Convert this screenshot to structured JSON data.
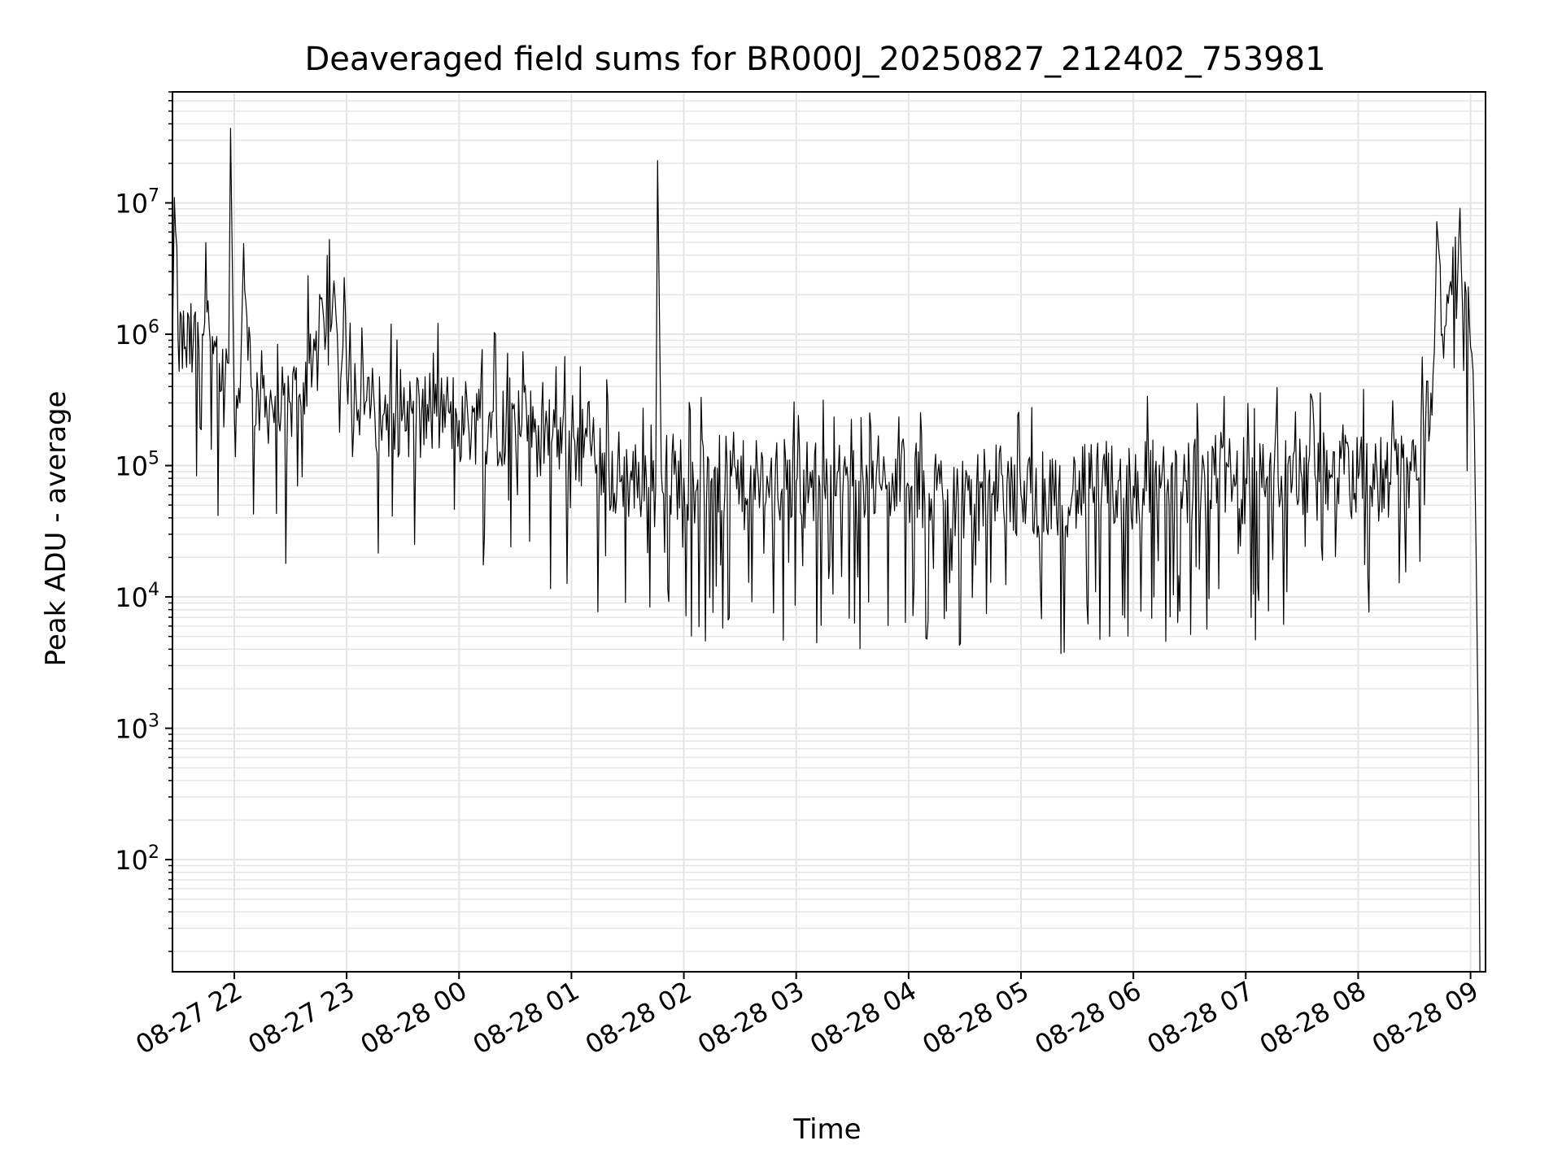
{
  "chart_data": {
    "type": "line",
    "title": "Deaveraged field sums for BR000J_20250827_212402_753981",
    "xlabel": "Time",
    "ylabel": "Peak ADU - average",
    "yscale": "log",
    "ylim": [
      14,
      70000000
    ],
    "xlim": [
      "2025-08-27 21:27",
      "2025-08-28 09:08"
    ],
    "grid": true,
    "line_color": "#000000",
    "grid_color": "#e5e5e5",
    "x_ticks": [
      {
        "t": "2025-08-27 22:00",
        "label": "08-27 22"
      },
      {
        "t": "2025-08-27 23:00",
        "label": "08-27 23"
      },
      {
        "t": "2025-08-28 00:00",
        "label": "08-28 00"
      },
      {
        "t": "2025-08-28 01:00",
        "label": "08-28 01"
      },
      {
        "t": "2025-08-28 02:00",
        "label": "08-28 02"
      },
      {
        "t": "2025-08-28 03:00",
        "label": "08-28 03"
      },
      {
        "t": "2025-08-28 04:00",
        "label": "08-28 04"
      },
      {
        "t": "2025-08-28 05:00",
        "label": "08-28 05"
      },
      {
        "t": "2025-08-28 06:00",
        "label": "08-28 06"
      },
      {
        "t": "2025-08-28 07:00",
        "label": "08-28 07"
      },
      {
        "t": "2025-08-28 08:00",
        "label": "08-28 08"
      },
      {
        "t": "2025-08-28 09:00",
        "label": "08-28 09"
      }
    ],
    "y_ticks": [
      {
        "value": 100,
        "base": "10",
        "exp": "2"
      },
      {
        "value": 1000,
        "base": "10",
        "exp": "3"
      },
      {
        "value": 10000,
        "base": "10",
        "exp": "4"
      },
      {
        "value": 100000,
        "base": "10",
        "exp": "5"
      },
      {
        "value": 1000000,
        "base": "10",
        "exp": "6"
      },
      {
        "value": 10000000,
        "base": "10",
        "exp": "7"
      }
    ],
    "series": [
      {
        "x": [
          "2025-08-27 21:27",
          "2025-08-27 21:28",
          "2025-08-27 21:30",
          "2025-08-27 21:34",
          "2025-08-27 21:38",
          "2025-08-27 21:43",
          "2025-08-27 21:46",
          "2025-08-27 21:50",
          "2025-08-27 21:52",
          "2025-08-27 21:55",
          "2025-08-27 21:57",
          "2025-08-27 21:58",
          "2025-08-27 22:00",
          "2025-08-27 22:03",
          "2025-08-27 22:05",
          "2025-08-27 22:09",
          "2025-08-27 22:14",
          "2025-08-27 22:20",
          "2025-08-27 22:25",
          "2025-08-27 22:30",
          "2025-08-27 22:35",
          "2025-08-27 22:40",
          "2025-08-27 22:45",
          "2025-08-27 22:49",
          "2025-08-27 22:52",
          "2025-08-27 22:55",
          "2025-08-27 22:58",
          "2025-08-27 23:00",
          "2025-08-27 23:05",
          "2025-08-27 23:10",
          "2025-08-27 23:15",
          "2025-08-27 23:20",
          "2025-08-27 23:25",
          "2025-08-27 23:30",
          "2025-08-27 23:35",
          "2025-08-27 23:40",
          "2025-08-27 23:45",
          "2025-08-27 23:50",
          "2025-08-27 23:55",
          "2025-08-28 00:00",
          "2025-08-28 00:10",
          "2025-08-28 00:20",
          "2025-08-28 00:30",
          "2025-08-28 00:40",
          "2025-08-28 00:50",
          "2025-08-28 01:00",
          "2025-08-28 01:10",
          "2025-08-28 01:20",
          "2025-08-28 01:30",
          "2025-08-28 01:40",
          "2025-08-28 01:45",
          "2025-08-28 01:46",
          "2025-08-28 01:48",
          "2025-08-28 02:00",
          "2025-08-28 02:15",
          "2025-08-28 02:30",
          "2025-08-28 02:45",
          "2025-08-28 03:00",
          "2025-08-28 03:15",
          "2025-08-28 03:30",
          "2025-08-28 03:45",
          "2025-08-28 04:00",
          "2025-08-28 04:15",
          "2025-08-28 04:30",
          "2025-08-28 04:45",
          "2025-08-28 05:00",
          "2025-08-28 05:15",
          "2025-08-28 05:30",
          "2025-08-28 05:45",
          "2025-08-28 06:00",
          "2025-08-28 06:15",
          "2025-08-28 06:30",
          "2025-08-28 06:45",
          "2025-08-28 07:00",
          "2025-08-28 07:15",
          "2025-08-28 07:30",
          "2025-08-28 07:45",
          "2025-08-28 08:00",
          "2025-08-28 08:15",
          "2025-08-28 08:30",
          "2025-08-28 08:36",
          "2025-08-28 08:40",
          "2025-08-28 08:42",
          "2025-08-28 08:45",
          "2025-08-28 08:50",
          "2025-08-28 08:55",
          "2025-08-28 08:57",
          "2025-08-28 09:00",
          "2025-08-28 09:02",
          "2025-08-28 09:03",
          "2025-08-28 09:04",
          "2025-08-28 09:05"
        ],
        "values": [
          800000,
          11000000,
          900000,
          800000,
          800000,
          1000000,
          1800000,
          800000,
          600000,
          400000,
          600000,
          37000000,
          250000,
          300000,
          4900000,
          400000,
          350000,
          300000,
          250000,
          300000,
          350000,
          600000,
          800000,
          1000000,
          1200000,
          1000000,
          800000,
          500000,
          350000,
          300000,
          250000,
          250000,
          250000,
          250000,
          250000,
          250000,
          250000,
          250000,
          250000,
          220000,
          220000,
          220000,
          200000,
          180000,
          170000,
          160000,
          150000,
          90000,
          80000,
          80000,
          70000,
          21000000,
          90000,
          80000,
          80000,
          70000,
          70000,
          75000,
          70000,
          70000,
          70000,
          70000,
          65000,
          60000,
          60000,
          60000,
          60000,
          65000,
          70000,
          70000,
          75000,
          80000,
          80000,
          80000,
          80000,
          80000,
          80000,
          80000,
          80000,
          90000,
          200000,
          500000,
          7200000,
          1000000,
          2000000,
          3500000,
          2500000,
          800000,
          200000,
          20000,
          1200,
          14
        ]
      }
    ]
  }
}
